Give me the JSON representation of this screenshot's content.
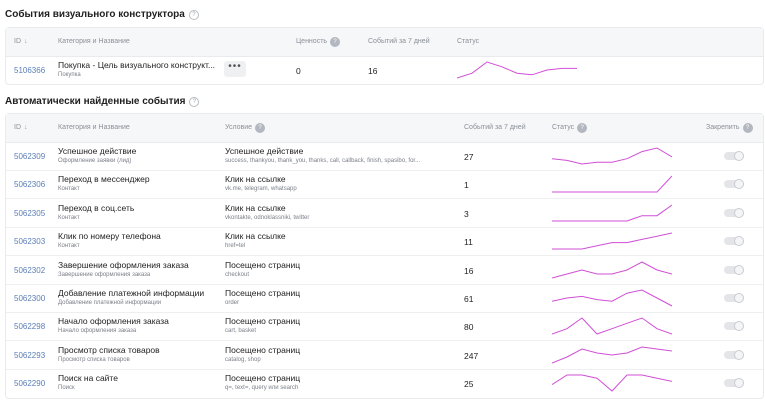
{
  "visual": {
    "title": "События визуального конструктора",
    "headers": {
      "id": "ID",
      "category": "Категория и Название",
      "value": "Ценность",
      "events": "Событий за 7 дней",
      "status": "Статус"
    },
    "row": {
      "id": "5106366",
      "name": "Покупка - Цель визуального конструкт...",
      "category": "Покупка",
      "value": "0",
      "events": "16",
      "more_label": "•••",
      "spark": [
        6,
        9,
        16,
        13,
        9,
        8,
        11,
        12,
        12
      ]
    }
  },
  "auto": {
    "title": "Автоматически найденные события",
    "headers": {
      "id": "ID",
      "category": "Категория и Название",
      "condition": "Условие",
      "events": "Событий за 7 дней",
      "status": "Статус",
      "pin": "Закрепить"
    },
    "rows": [
      {
        "id": "5062309",
        "name": "Успешное действие",
        "category": "Оформление заявки (лид)",
        "cond_type": "Успешное действие",
        "cond_value": "success, thankyou, thank_you, thanks, call, callback, finish, spasibo, for...",
        "events": "27",
        "spark": [
          8,
          7,
          5,
          6,
          6,
          8,
          12,
          14,
          9
        ]
      },
      {
        "id": "5062306",
        "name": "Переход в мессенджер",
        "category": "Контакт",
        "cond_type": "Клик на ссылке",
        "cond_value": "vk.me, telegram, whatsapp",
        "events": "1",
        "spark": [
          0,
          0,
          0,
          0,
          0,
          0,
          0,
          0,
          1
        ]
      },
      {
        "id": "5062305",
        "name": "Переход в соц.сеть",
        "category": "Контакт",
        "cond_type": "Клик на ссылке",
        "cond_value": "vkontakte, odnoklassniki, twitter",
        "events": "3",
        "spark": [
          0,
          0,
          0,
          0,
          0,
          0,
          1,
          1,
          3
        ]
      },
      {
        "id": "5062303",
        "name": "Клик по номеру телефона",
        "category": "Контакт",
        "cond_type": "Клик на ссылке",
        "cond_value": "href=tel",
        "events": "11",
        "spark": [
          1,
          1,
          1,
          2,
          3,
          3,
          4,
          5,
          6
        ]
      },
      {
        "id": "5062302",
        "name": "Завершение оформления заказа",
        "category": "Завершение оформления заказа",
        "cond_type": "Посещено страниц",
        "cond_value": "checkout",
        "events": "16",
        "spark": [
          2,
          3,
          4,
          3,
          3,
          4,
          6,
          4,
          3
        ]
      },
      {
        "id": "5062300",
        "name": "Добавление платежной информации",
        "category": "Добавление платежной информации",
        "cond_type": "Посещено страниц",
        "cond_value": "order",
        "events": "61",
        "spark": [
          9,
          11,
          12,
          10,
          9,
          14,
          16,
          11,
          6
        ]
      },
      {
        "id": "5062298",
        "name": "Начало оформления заказа",
        "category": "Начало оформления заказа",
        "cond_type": "Посещено страниц",
        "cond_value": "cart, basket",
        "events": "80",
        "spark": [
          12,
          13,
          15,
          12,
          13,
          14,
          15,
          13,
          12
        ]
      },
      {
        "id": "5062293",
        "name": "Просмотр списка товаров",
        "category": "Просмотр списка товаров",
        "cond_type": "Посещено страниц",
        "cond_value": "catalog, shop",
        "events": "247",
        "spark": [
          30,
          33,
          37,
          35,
          34,
          35,
          38,
          37,
          36
        ]
      },
      {
        "id": "5062290",
        "name": "Поиск на сайте",
        "category": "Поиск",
        "cond_type": "Посещено страниц",
        "cond_value": "q=, text=, query или search",
        "events": "25",
        "spark": [
          3,
          6,
          6,
          5,
          1,
          6,
          6,
          5,
          4
        ]
      }
    ]
  }
}
